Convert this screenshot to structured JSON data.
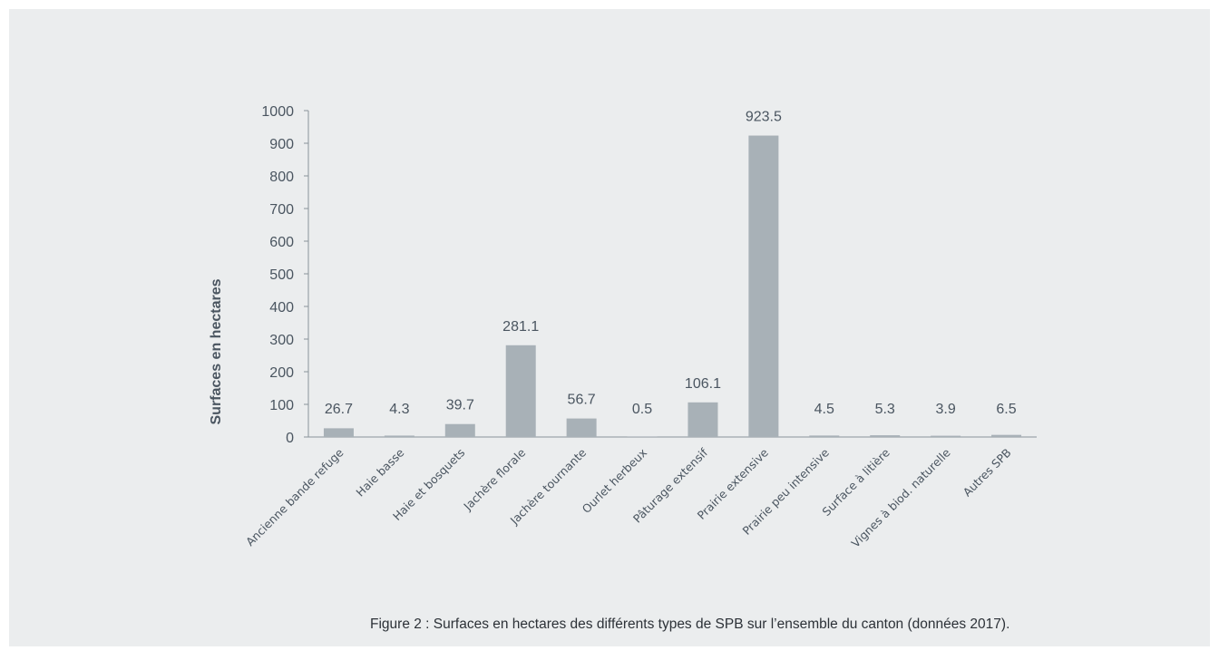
{
  "chart_data": {
    "type": "bar",
    "ylabel": "Surfaces en hectares",
    "xlabel": "",
    "ylim": [
      0,
      1000
    ],
    "yticks": [
      0,
      100,
      200,
      300,
      400,
      500,
      600,
      700,
      800,
      900,
      1000
    ],
    "categories": [
      "Ancienne bande refuge",
      "Haie basse",
      "Haie et bosquets",
      "Jachère florale",
      "Jachère tournante",
      "Ourlet herbeux",
      "Pâturage extensif",
      "Prairie extensive",
      "Prairie peu intensive",
      "Surface à litière",
      "Vignes à biod. naturelle",
      "Autres SPB"
    ],
    "values": [
      26.7,
      4.3,
      39.7,
      281.1,
      56.7,
      0.5,
      106.1,
      923.5,
      4.5,
      5.3,
      3.9,
      6.5
    ],
    "data_labels": [
      "26.7",
      "4.3",
      "39.7",
      "281.1",
      "56.7",
      "0.5",
      "106.1",
      "923.5",
      "4.5",
      "5.3",
      "3.9",
      "6.5"
    ],
    "grid": false,
    "legend": "none",
    "bar_color": "#a8b1b7",
    "text_color": "#4a5560",
    "axis_color": "#8a939a"
  },
  "caption": "Figure 2 : Surfaces en hectares des différents types de SPB sur l’ensemble du canton (données 2017)."
}
